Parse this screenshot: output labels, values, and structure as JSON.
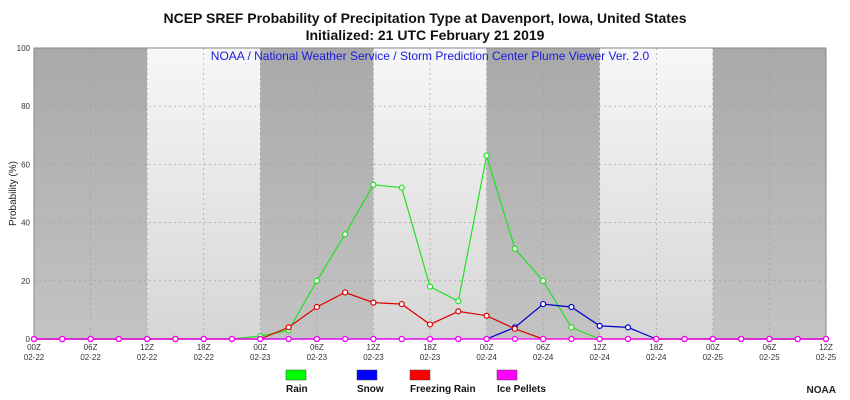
{
  "header": {
    "title": "NCEP SREF Probability of Precipitation Type at Davenport, Iowa, United States",
    "subtitle": "Initialized: 21 UTC February 21 2019"
  },
  "footer": {
    "credit": "NOAA"
  },
  "chart_data": {
    "type": "line",
    "title": "NCEP SREF Probability of Precipitation Type at Davenport, Iowa, United States",
    "subtitle": "Initialized: 21 UTC February 21 2019",
    "annotation": "NOAA / National Weather Service / Storm Prediction Center Plume Viewer Ver. 2.0",
    "ylabel": "Probability (%)",
    "xlabel": "",
    "ylim": [
      0,
      100
    ],
    "yticks": [
      0,
      20,
      40,
      60,
      80,
      100
    ],
    "x": [
      "02-22 00Z",
      "02-22 03Z",
      "02-22 06Z",
      "02-22 09Z",
      "02-22 12Z",
      "02-22 15Z",
      "02-22 18Z",
      "02-22 21Z",
      "02-23 00Z",
      "02-23 03Z",
      "02-23 06Z",
      "02-23 09Z",
      "02-23 12Z",
      "02-23 15Z",
      "02-23 18Z",
      "02-23 21Z",
      "02-24 00Z",
      "02-24 03Z",
      "02-24 06Z",
      "02-24 09Z",
      "02-24 12Z",
      "02-24 15Z",
      "02-24 18Z",
      "02-24 21Z",
      "02-25 00Z",
      "02-25 03Z",
      "02-25 06Z",
      "02-25 09Z",
      "02-25 12Z"
    ],
    "xtick_labels": [
      {
        "time": "00Z",
        "date": "02-22"
      },
      {
        "time": "06Z",
        "date": "02-22"
      },
      {
        "time": "12Z",
        "date": "02-22"
      },
      {
        "time": "18Z",
        "date": "02-22"
      },
      {
        "time": "00Z",
        "date": "02-23"
      },
      {
        "time": "06Z",
        "date": "02-23"
      },
      {
        "time": "12Z",
        "date": "02-23"
      },
      {
        "time": "18Z",
        "date": "02-23"
      },
      {
        "time": "00Z",
        "date": "02-24"
      },
      {
        "time": "06Z",
        "date": "02-24"
      },
      {
        "time": "12Z",
        "date": "02-24"
      },
      {
        "time": "18Z",
        "date": "02-24"
      },
      {
        "time": "00Z",
        "date": "02-25"
      },
      {
        "time": "06Z",
        "date": "02-25"
      },
      {
        "time": "12Z",
        "date": "02-25"
      }
    ],
    "shaded_periods": [
      {
        "from": "02-22 00Z",
        "to": "02-22 12Z",
        "tone": "dark"
      },
      {
        "from": "02-22 12Z",
        "to": "02-23 00Z",
        "tone": "light"
      },
      {
        "from": "02-23 00Z",
        "to": "02-23 12Z",
        "tone": "dark"
      },
      {
        "from": "02-23 12Z",
        "to": "02-24 00Z",
        "tone": "light"
      },
      {
        "from": "02-24 00Z",
        "to": "02-24 12Z",
        "tone": "dark"
      },
      {
        "from": "02-24 12Z",
        "to": "02-25 00Z",
        "tone": "light"
      },
      {
        "from": "02-25 00Z",
        "to": "02-25 12Z",
        "tone": "dark"
      }
    ],
    "series": [
      {
        "name": "Rain",
        "color": "#22e022",
        "legend_color": "#00ff00",
        "values": [
          0,
          0,
          0,
          0,
          0,
          0,
          0,
          0,
          1,
          3,
          20,
          36,
          53,
          52,
          18,
          13,
          63,
          31,
          20,
          4,
          0,
          0,
          0,
          0,
          0,
          0,
          0,
          0,
          0
        ]
      },
      {
        "name": "Snow",
        "color": "#0000cc",
        "legend_color": "#0000ff",
        "values": [
          0,
          0,
          0,
          0,
          0,
          0,
          0,
          0,
          0,
          0,
          0,
          0,
          0,
          0,
          0,
          0,
          0,
          4,
          12,
          11,
          4.5,
          4,
          0,
          0,
          0,
          0,
          0,
          0,
          0
        ]
      },
      {
        "name": "Freezing Rain",
        "color": "#dd0000",
        "legend_color": "#ff0000",
        "values": [
          0,
          0,
          0,
          0,
          0,
          0,
          0,
          0,
          0,
          4,
          11,
          16,
          12.5,
          12,
          5,
          9.5,
          8,
          3.5,
          0,
          0,
          0,
          0,
          0,
          0,
          0,
          0,
          0,
          0,
          0
        ]
      },
      {
        "name": "Ice Pellets",
        "color": "#ff00ff",
        "legend_color": "#ff00ff",
        "values": [
          0,
          0,
          0,
          0,
          0,
          0,
          0,
          0,
          0,
          0,
          0,
          0,
          0,
          0,
          0,
          0,
          0,
          0,
          0,
          0,
          0,
          0,
          0,
          0,
          0,
          0,
          0,
          0,
          0
        ]
      }
    ],
    "grid": true,
    "legend": "bottom"
  }
}
